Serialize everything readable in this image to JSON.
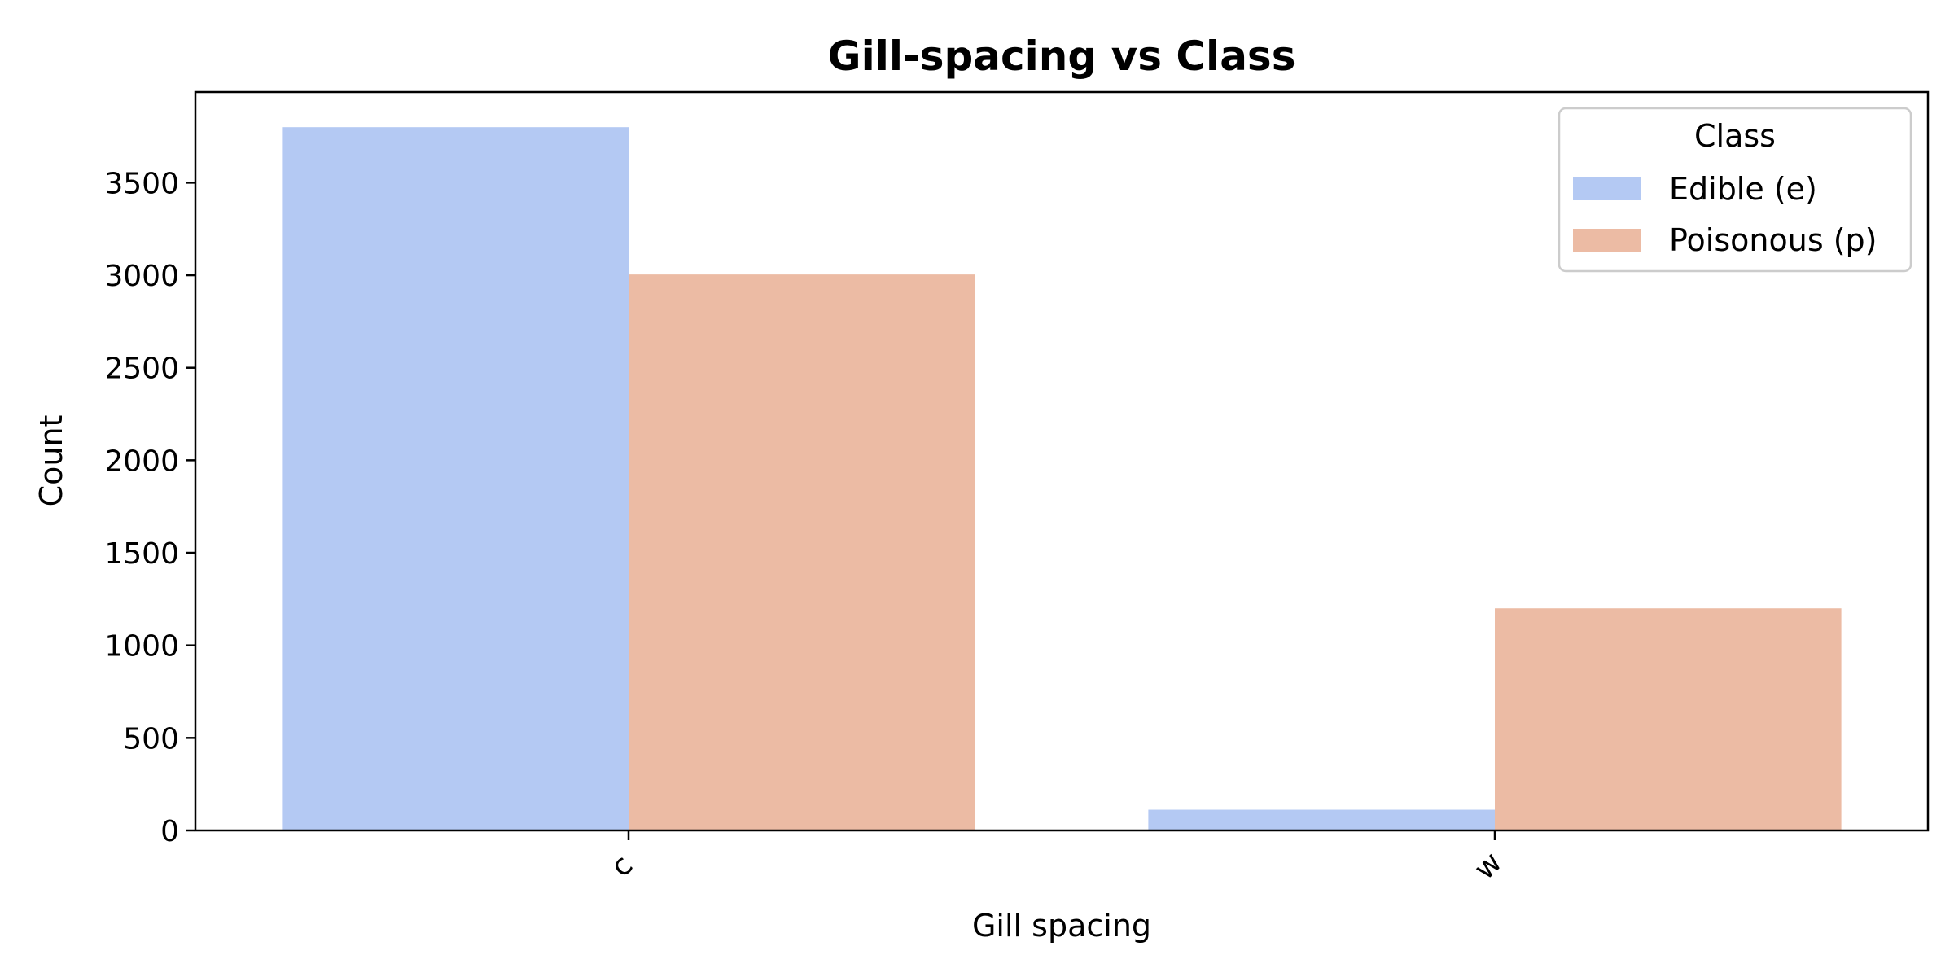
{
  "chart_data": {
    "type": "bar",
    "title": "Gill-spacing vs Class",
    "xlabel": "Gill spacing",
    "ylabel": "Count",
    "categories": [
      "c",
      "w"
    ],
    "series": [
      {
        "name": "Edible (e)",
        "values": [
          3800,
          112
        ],
        "color": "#b4c9f3"
      },
      {
        "name": "Poisonous (p)",
        "values": [
          3004,
          1200
        ],
        "color": "#ecbba4"
      }
    ],
    "ylim": [
      0,
      3990
    ],
    "yticks": [
      0,
      500,
      1000,
      1500,
      2000,
      2500,
      3000,
      3500
    ],
    "grid": false,
    "legend": {
      "title": "Class",
      "position": "top-right"
    }
  }
}
